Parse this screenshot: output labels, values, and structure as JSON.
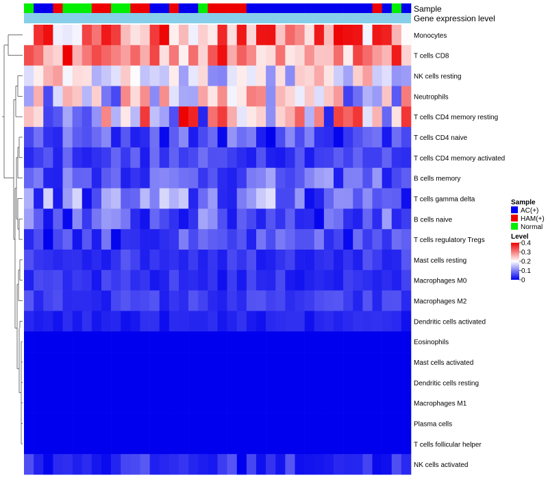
{
  "chart_data": {
    "type": "heatmap",
    "title": "",
    "annotation_tracks": [
      {
        "name": "Sample",
        "label": "Sample"
      },
      {
        "name": "Gene expression level",
        "label": "Gene expression level"
      }
    ],
    "legend": {
      "placement": "right",
      "sample": {
        "title": "Sample",
        "items": [
          {
            "label": "AC(+)",
            "color": "#0000ee"
          },
          {
            "label": "HAM(+)",
            "color": "#ee0000"
          },
          {
            "label": "Normal",
            "color": "#00ee00"
          }
        ]
      },
      "level": {
        "title": "Level",
        "ticks": [
          "0.4",
          "0.3",
          "0.2",
          "0.1",
          "0"
        ],
        "tick_values": [
          0.4,
          0.3,
          0.2,
          0.1,
          0
        ],
        "range": [
          0,
          0.4
        ],
        "colors": [
          "#0000ee",
          "#ffffff",
          "#ee0000"
        ]
      }
    },
    "sample_groups": [
      "N",
      "A",
      "A",
      "H",
      "N",
      "N",
      "N",
      "H",
      "H",
      "N",
      "N",
      "H",
      "H",
      "A",
      "A",
      "H",
      "A",
      "A",
      "N",
      "H",
      "H",
      "H",
      "H",
      "A",
      "A",
      "A",
      "A",
      "A",
      "A",
      "A",
      "A",
      "A",
      "A",
      "A",
      "A",
      "A",
      "H",
      "A",
      "N",
      "A"
    ],
    "expression_track_color": "#87ceeb",
    "rows": [
      "Monocytes",
      "T cells CD8",
      "NK cells resting",
      "Neutrophils",
      "T cells CD4 memory resting",
      "T cells CD4 naive",
      "T cells CD4 memory activated",
      "B cells memory",
      "T cells gamma delta",
      "B cells naive",
      "T cells regulatory  Tregs",
      "Mast cells resting",
      "Macrophages M0",
      "Macrophages M2",
      "Dendritic cells activated",
      "Eosinophils",
      "Mast cells activated",
      "Dendritic cells resting",
      "Macrophages M1",
      "Plasma cells",
      "T cells follicular helper",
      "NK cells activated"
    ],
    "row_ranges": [
      [
        0.18,
        0.4
      ],
      [
        0.2,
        0.4
      ],
      [
        0.1,
        0.28
      ],
      [
        0.05,
        0.32
      ],
      [
        0.02,
        0.4
      ],
      [
        0.0,
        0.12
      ],
      [
        0.02,
        0.09
      ],
      [
        0.02,
        0.13
      ],
      [
        0.0,
        0.18
      ],
      [
        0.0,
        0.13
      ],
      [
        0.0,
        0.1
      ],
      [
        0.02,
        0.07
      ],
      [
        0.01,
        0.06
      ],
      [
        0.02,
        0.07
      ],
      [
        0.01,
        0.04
      ],
      [
        0.0,
        0.0
      ],
      [
        0.0,
        0.0
      ],
      [
        0.0,
        0.0
      ],
      [
        0.0,
        0.0
      ],
      [
        0.0,
        0.0
      ],
      [
        0.0,
        0.0
      ],
      [
        0.0,
        0.07
      ]
    ]
  }
}
